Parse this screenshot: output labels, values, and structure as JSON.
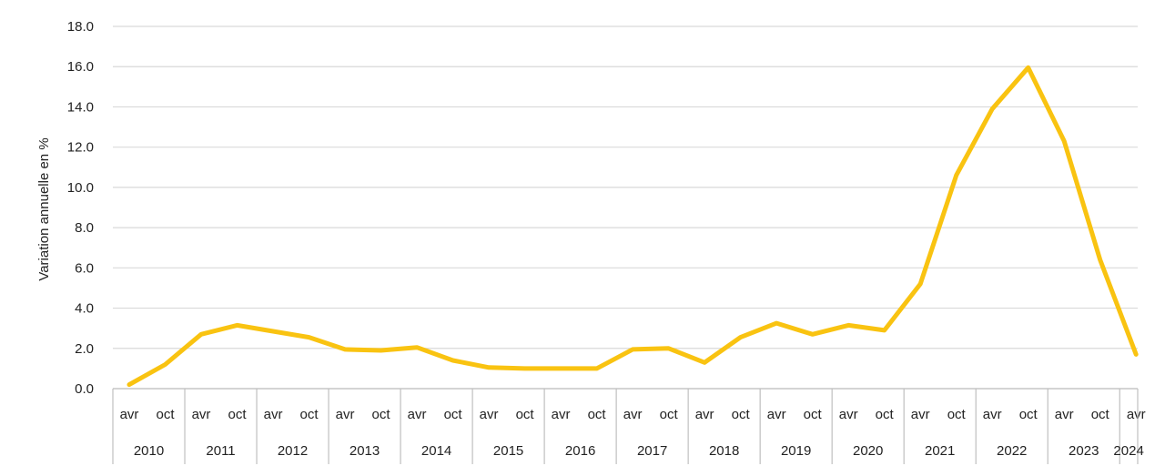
{
  "chart_data": {
    "type": "line",
    "ylabel": "Variation annuelle en %",
    "ylim": [
      0,
      18
    ],
    "yticks": [
      "0.0",
      "2.0",
      "4.0",
      "6.0",
      "8.0",
      "10.0",
      "12.0",
      "14.0",
      "16.0",
      "18.0"
    ],
    "grid": "horizontal",
    "line_color": "#F9C311",
    "x": [
      "2010 avr",
      "2010 oct",
      "2011 avr",
      "2011 oct",
      "2012 avr",
      "2012 oct",
      "2013 avr",
      "2013 oct",
      "2014 avr",
      "2014 oct",
      "2015 avr",
      "2015 oct",
      "2016 avr",
      "2016 oct",
      "2017 avr",
      "2017 oct",
      "2018 avr",
      "2018 oct",
      "2019 avr",
      "2019 oct",
      "2020 avr",
      "2020 oct",
      "2021 avr",
      "2021 oct",
      "2022 avr",
      "2022 oct",
      "2023 avr",
      "2023 oct",
      "2024 avr"
    ],
    "series": [
      {
        "values": [
          0.2,
          1.2,
          2.7,
          3.15,
          2.85,
          2.55,
          1.95,
          1.9,
          2.05,
          1.4,
          1.05,
          1.0,
          1.0,
          1.0,
          1.95,
          2.0,
          1.3,
          2.55,
          3.25,
          2.7,
          3.15,
          2.9,
          5.2,
          10.6,
          13.9,
          15.95,
          12.3,
          6.4,
          1.7
        ]
      }
    ],
    "x_months": [
      "avr",
      "oct",
      "avr",
      "oct",
      "avr",
      "oct",
      "avr",
      "oct",
      "avr",
      "oct",
      "avr",
      "oct",
      "avr",
      "oct",
      "avr",
      "oct",
      "avr",
      "oct",
      "avr",
      "oct",
      "avr",
      "oct",
      "avr",
      "oct",
      "avr",
      "oct",
      "avr",
      "oct",
      "avr"
    ],
    "x_years": [
      "2010",
      "2011",
      "2012",
      "2013",
      "2014",
      "2015",
      "2016",
      "2017",
      "2018",
      "2019",
      "2020",
      "2021",
      "2022",
      "2023",
      "2024"
    ]
  }
}
